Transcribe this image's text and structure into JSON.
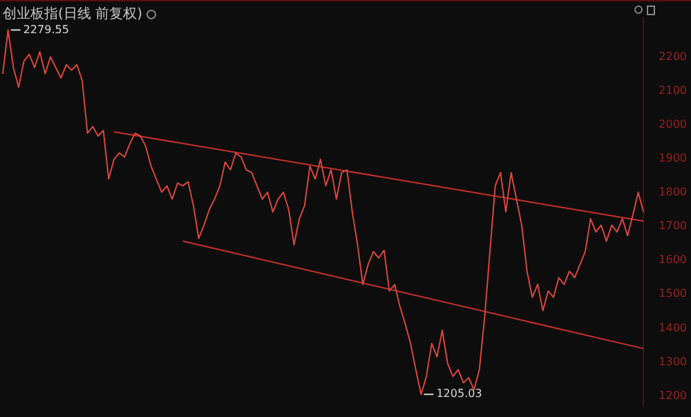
{
  "chart_data": {
    "type": "line",
    "title": "创业板指(日线 前复权)",
    "categories": [
      null,
      null,
      null,
      null,
      null,
      null,
      null,
      null,
      null,
      null,
      null,
      null,
      null,
      null,
      null,
      null,
      null,
      null,
      null,
      null,
      null,
      null,
      null,
      null,
      null,
      null,
      null,
      null,
      null,
      null,
      null,
      null,
      null,
      null,
      null,
      null,
      null,
      null,
      null,
      null,
      null,
      null,
      null,
      null,
      null,
      null,
      null,
      null,
      null,
      null,
      null,
      null,
      null,
      null,
      null,
      null,
      null,
      null,
      null,
      null,
      null,
      null,
      null,
      null,
      null,
      null,
      null,
      null,
      null,
      null,
      null,
      null,
      null,
      null,
      null,
      null,
      null,
      null,
      null,
      null,
      null,
      null,
      null,
      null,
      null,
      null,
      null,
      null,
      null,
      null,
      null,
      null,
      null,
      null,
      null,
      null,
      null,
      null,
      null,
      null,
      null,
      null,
      null,
      null,
      null,
      null,
      null,
      null,
      null,
      null,
      null,
      null,
      null,
      null,
      null,
      null,
      null,
      null,
      null,
      null,
      null,
      null
    ],
    "series": [
      {
        "color": "#d9463f",
        "values": [
          2150,
          2279.55,
          2169,
          2111,
          2188,
          2208,
          2169,
          2215,
          2150,
          2200,
          2169,
          2138,
          2177,
          2161,
          2177,
          2130,
          1975,
          1995,
          1967,
          1983,
          1840,
          1898,
          1917,
          1905,
          1944,
          1975,
          1967,
          1936,
          1878,
          1840,
          1801,
          1820,
          1781,
          1828,
          1820,
          1832,
          1762,
          1665,
          1704,
          1750,
          1781,
          1820,
          1890,
          1867,
          1917,
          1905,
          1867,
          1859,
          1820,
          1781,
          1801,
          1743,
          1781,
          1801,
          1750,
          1646,
          1723,
          1762,
          1878,
          1840,
          1898,
          1820,
          1867,
          1781,
          1859,
          1867,
          1743,
          1646,
          1529,
          1588,
          1626,
          1607,
          1630,
          1510,
          1529,
          1464,
          1413,
          1355,
          1278,
          1205.03,
          1258,
          1355,
          1316,
          1394,
          1297,
          1258,
          1278,
          1239,
          1254,
          1219,
          1278,
          1433,
          1626,
          1820,
          1859,
          1743,
          1859,
          1781,
          1704,
          1568,
          1491,
          1529,
          1452,
          1510,
          1491,
          1549,
          1529,
          1568,
          1549,
          1588,
          1626,
          1723,
          1684,
          1704,
          1657,
          1704,
          1684,
          1723,
          1673,
          1735,
          1801,
          1743
        ]
      },
      {
        "type": "line",
        "color": "#c8302c",
        "values": [
          null,
          null,
          null,
          null,
          null,
          null,
          null,
          null,
          null,
          null,
          null,
          null,
          null,
          null,
          null,
          null,
          null,
          null,
          null,
          null,
          null,
          1979,
          null,
          null,
          null,
          null,
          null,
          null,
          null,
          null,
          null,
          null,
          null,
          null,
          null,
          null,
          null,
          null,
          null,
          null,
          null,
          null,
          null,
          null,
          null,
          null,
          null,
          null,
          null,
          null,
          null,
          null,
          null,
          null,
          null,
          null,
          null,
          null,
          null,
          null,
          null,
          null,
          null,
          null,
          null,
          null,
          null,
          null,
          null,
          null,
          null,
          null,
          null,
          null,
          null,
          null,
          null,
          null,
          null,
          null,
          null,
          null,
          null,
          null,
          null,
          null,
          null,
          null,
          null,
          null,
          null,
          null,
          null,
          null,
          null,
          null,
          null,
          null,
          null,
          null,
          null,
          null,
          null,
          null,
          null,
          null,
          null,
          null,
          null,
          null,
          null,
          null,
          null,
          null,
          null,
          null,
          null,
          null,
          null,
          null,
          null,
          1716
        ]
      },
      {
        "type": "line",
        "color": "#c8302c",
        "values": [
          null,
          null,
          null,
          null,
          null,
          null,
          null,
          null,
          null,
          null,
          null,
          null,
          null,
          null,
          null,
          null,
          null,
          null,
          null,
          null,
          null,
          null,
          null,
          null,
          null,
          null,
          null,
          null,
          null,
          null,
          null,
          null,
          null,
          null,
          1657,
          null,
          null,
          null,
          null,
          null,
          null,
          null,
          null,
          null,
          null,
          null,
          null,
          null,
          null,
          null,
          null,
          null,
          null,
          null,
          null,
          null,
          null,
          null,
          null,
          null,
          null,
          null,
          null,
          null,
          null,
          null,
          null,
          null,
          null,
          null,
          null,
          null,
          null,
          null,
          null,
          null,
          null,
          null,
          null,
          null,
          null,
          null,
          null,
          null,
          null,
          null,
          null,
          null,
          null,
          null,
          null,
          null,
          null,
          null,
          null,
          null,
          null,
          null,
          null,
          null,
          null,
          null,
          null,
          null,
          null,
          null,
          null,
          null,
          null,
          null,
          null,
          null,
          null,
          null,
          null,
          null,
          null,
          null,
          null,
          null,
          null,
          1340
        ]
      }
    ],
    "annotations": [
      "2279.55",
      "1205.03"
    ],
    "ylim": [
      1170,
      2315
    ],
    "yticks": [
      1200,
      1300,
      1400,
      1500,
      1600,
      1700,
      1800,
      1900,
      2000,
      2100,
      2200
    ],
    "grid": false,
    "legend": false,
    "marker": "none",
    "line_style": "solid",
    "tick_labels": "y"
  }
}
